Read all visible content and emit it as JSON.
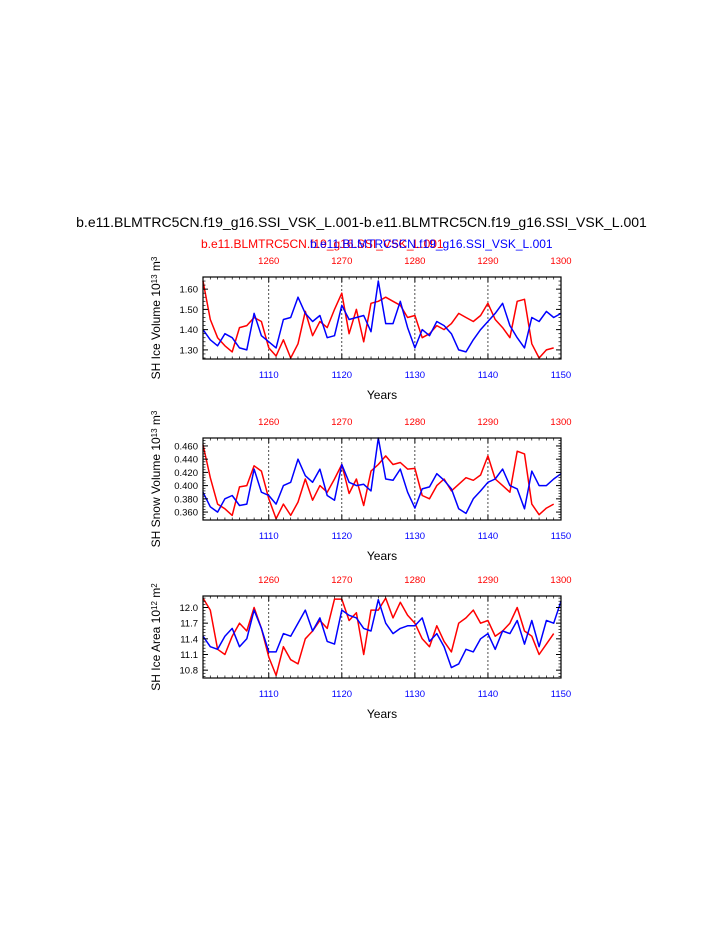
{
  "title": "b.e11.BLMTRC5CN.f19_g16.SSI_VSK_L.001-b.e11.BLMTRC5CN.f19_g16.SSI_VSK_L.001",
  "legend": {
    "red": "b.e11.BLMTRC5CN.f19_g16.SSI_VSK_L.001",
    "blue": "b.e11.BLMTRC5CN.f19_g16.SSI_VSK_L.001"
  },
  "colors": {
    "red": "#ff0000",
    "blue": "#0000ff",
    "axis": "#000000"
  },
  "chart_data": [
    {
      "type": "line",
      "ylabel_main": "SH Ice Volume 10",
      "ylabel_sup1": "13",
      "ylabel_mid": " m",
      "ylabel_sup2": "3",
      "xlabel": "Years",
      "ylim": [
        1.255,
        1.66
      ],
      "yticks": [
        1.3,
        1.4,
        1.5,
        1.6
      ],
      "ytick_labels": [
        "1.30",
        "1.40",
        "1.50",
        "1.60"
      ],
      "bottom_x": {
        "range": [
          1101,
          1150
        ],
        "ticks": [
          1110,
          1120,
          1130,
          1140,
          1150
        ],
        "labels": [
          "1110",
          "1120",
          "1130",
          "1140",
          "1150"
        ]
      },
      "top_x": {
        "range": [
          1251,
          1300
        ],
        "ticks": [
          1260,
          1270,
          1280,
          1290,
          1300
        ],
        "labels": [
          "1260",
          "1270",
          "1280",
          "1290",
          "1300"
        ]
      },
      "series": [
        {
          "color": "red",
          "x_axis": "top",
          "values": [
            1.64,
            1.45,
            1.36,
            1.32,
            1.29,
            1.41,
            1.42,
            1.46,
            1.44,
            1.31,
            1.27,
            1.35,
            1.26,
            1.33,
            1.49,
            1.37,
            1.44,
            1.41,
            1.5,
            1.58,
            1.38,
            1.5,
            1.34,
            1.53,
            1.54,
            1.56,
            1.54,
            1.52,
            1.46,
            1.47,
            1.36,
            1.38,
            1.42,
            1.4,
            1.43,
            1.48,
            1.46,
            1.44,
            1.47,
            1.53,
            1.45,
            1.41,
            1.36,
            1.54,
            1.55,
            1.33,
            1.26,
            1.3,
            1.31
          ]
        },
        {
          "color": "blue",
          "x_axis": "bottom",
          "values": [
            1.4,
            1.35,
            1.32,
            1.38,
            1.36,
            1.31,
            1.3,
            1.48,
            1.37,
            1.34,
            1.31,
            1.45,
            1.46,
            1.56,
            1.48,
            1.44,
            1.47,
            1.36,
            1.37,
            1.52,
            1.45,
            1.46,
            1.47,
            1.39,
            1.64,
            1.43,
            1.43,
            1.54,
            1.41,
            1.31,
            1.4,
            1.37,
            1.44,
            1.42,
            1.38,
            1.3,
            1.29,
            1.35,
            1.4,
            1.44,
            1.48,
            1.53,
            1.42,
            1.36,
            1.31,
            1.46,
            1.44,
            1.49,
            1.46,
            1.48
          ]
        }
      ]
    },
    {
      "type": "line",
      "ylabel_main": "SH Snow Volume 10",
      "ylabel_sup1": "13",
      "ylabel_mid": " m",
      "ylabel_sup2": "3",
      "xlabel": "Years",
      "ylim": [
        0.348,
        0.472
      ],
      "yticks": [
        0.36,
        0.38,
        0.4,
        0.42,
        0.44,
        0.46
      ],
      "ytick_labels": [
        "0.360",
        "0.380",
        "0.400",
        "0.420",
        "0.440",
        "0.460"
      ],
      "bottom_x": {
        "range": [
          1101,
          1150
        ],
        "ticks": [
          1110,
          1120,
          1130,
          1140,
          1150
        ],
        "labels": [
          "1110",
          "1120",
          "1130",
          "1140",
          "1150"
        ]
      },
      "top_x": {
        "range": [
          1251,
          1300
        ],
        "ticks": [
          1260,
          1270,
          1280,
          1290,
          1300
        ],
        "labels": [
          "1260",
          "1270",
          "1280",
          "1290",
          "1300"
        ]
      },
      "series": [
        {
          "color": "red",
          "x_axis": "top",
          "values": [
            0.462,
            0.412,
            0.372,
            0.365,
            0.355,
            0.398,
            0.4,
            0.43,
            0.422,
            0.38,
            0.35,
            0.372,
            0.355,
            0.375,
            0.41,
            0.378,
            0.4,
            0.39,
            0.41,
            0.432,
            0.388,
            0.41,
            0.37,
            0.422,
            0.432,
            0.445,
            0.432,
            0.435,
            0.425,
            0.426,
            0.385,
            0.38,
            0.4,
            0.41,
            0.392,
            0.402,
            0.412,
            0.408,
            0.416,
            0.445,
            0.41,
            0.4,
            0.39,
            0.452,
            0.448,
            0.372,
            0.356,
            0.366,
            0.372
          ]
        },
        {
          "color": "blue",
          "x_axis": "bottom",
          "values": [
            0.39,
            0.368,
            0.36,
            0.38,
            0.385,
            0.37,
            0.372,
            0.425,
            0.39,
            0.385,
            0.372,
            0.4,
            0.405,
            0.44,
            0.415,
            0.405,
            0.425,
            0.385,
            0.378,
            0.432,
            0.405,
            0.4,
            0.402,
            0.392,
            0.472,
            0.41,
            0.408,
            0.425,
            0.39,
            0.366,
            0.395,
            0.398,
            0.418,
            0.408,
            0.395,
            0.365,
            0.358,
            0.38,
            0.392,
            0.405,
            0.41,
            0.425,
            0.4,
            0.395,
            0.365,
            0.422,
            0.4,
            0.4,
            0.41,
            0.418
          ]
        }
      ]
    },
    {
      "type": "line",
      "ylabel_main": "SH Ice Area 10",
      "ylabel_sup1": "12",
      "ylabel_mid": " m",
      "ylabel_sup2": "2",
      "xlabel": "Years",
      "ylim": [
        10.65,
        12.22
      ],
      "yticks": [
        10.8,
        11.1,
        11.4,
        11.7,
        12.0
      ],
      "ytick_labels": [
        "10.8",
        "11.1",
        "11.4",
        "11.7",
        "12.0"
      ],
      "bottom_x": {
        "range": [
          1101,
          1150
        ],
        "ticks": [
          1110,
          1120,
          1130,
          1140,
          1150
        ],
        "labels": [
          "1110",
          "1120",
          "1130",
          "1140",
          "1150"
        ]
      },
      "top_x": {
        "range": [
          1251,
          1300
        ],
        "ticks": [
          1260,
          1270,
          1280,
          1290,
          1300
        ],
        "labels": [
          "1260",
          "1270",
          "1280",
          "1290",
          "1300"
        ]
      },
      "series": [
        {
          "color": "red",
          "x_axis": "top",
          "values": [
            12.18,
            11.95,
            11.2,
            11.1,
            11.45,
            11.7,
            11.55,
            12.0,
            11.6,
            11.05,
            10.7,
            11.25,
            11.0,
            10.92,
            11.4,
            11.55,
            11.75,
            11.6,
            12.16,
            12.16,
            11.75,
            11.9,
            11.1,
            11.95,
            11.95,
            12.18,
            11.8,
            12.1,
            11.85,
            11.7,
            11.4,
            11.25,
            11.65,
            11.35,
            11.15,
            11.7,
            11.8,
            11.95,
            11.7,
            11.75,
            11.45,
            11.55,
            11.7,
            12.0,
            11.55,
            11.45,
            11.1,
            11.3,
            11.5
          ]
        },
        {
          "color": "blue",
          "x_axis": "bottom",
          "values": [
            11.45,
            11.25,
            11.2,
            11.45,
            11.6,
            11.25,
            11.4,
            11.95,
            11.6,
            11.15,
            11.15,
            11.5,
            11.45,
            11.7,
            11.95,
            11.55,
            11.8,
            11.35,
            11.3,
            11.95,
            11.85,
            11.8,
            11.6,
            11.55,
            12.15,
            11.7,
            11.5,
            11.6,
            11.65,
            11.65,
            11.8,
            11.35,
            11.5,
            11.25,
            10.85,
            10.92,
            11.2,
            11.15,
            11.4,
            11.5,
            11.2,
            11.55,
            11.5,
            11.75,
            11.3,
            11.75,
            11.25,
            11.75,
            11.7,
            12.12
          ]
        }
      ]
    }
  ]
}
